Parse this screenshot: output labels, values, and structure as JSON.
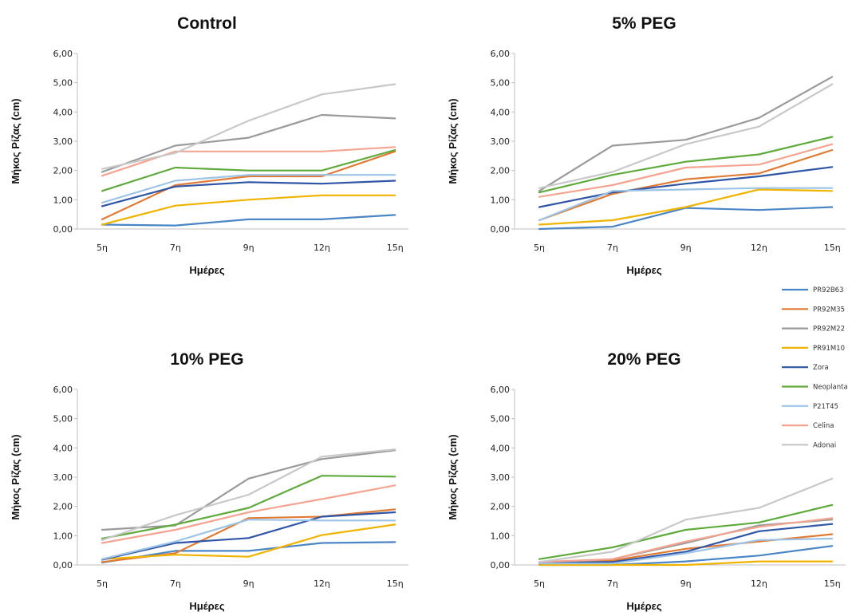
{
  "colors": {
    "PR92B63": "#4a86c5",
    "PR92M35": "#e07b36",
    "PR92M22": "#9a9a9a",
    "PR91M10": "#f0b400",
    "Zora": "#2f55a6",
    "Neoplanta": "#5faa3c",
    "P21T45": "#9dc3e6",
    "Celina": "#f4a490",
    "Adonai": "#c8c8c8"
  },
  "legend": {
    "placement": "right",
    "entries": [
      "PR92B63",
      "PR92M35",
      "PR92M22",
      "PR91M10",
      "Zora",
      "Neoplanta",
      "P21T45",
      "Celina",
      "Adonai"
    ]
  },
  "chart_data": [
    {
      "type": "line",
      "title": "Control",
      "xlabel": "Ημέρες",
      "ylabel": "Μήκος Ρίζας (cm)",
      "categories": [
        "5η",
        "7η",
        "9η",
        "12η",
        "15η"
      ],
      "ylim": [
        0,
        6
      ],
      "yticks": [
        "0,00",
        "1,00",
        "2,00",
        "3,00",
        "4,00",
        "5,00",
        "6,00"
      ],
      "grid": false,
      "series": [
        {
          "name": "PR92B63",
          "values": [
            0.15,
            0.12,
            0.33,
            0.33,
            0.48
          ]
        },
        {
          "name": "PR92M35",
          "values": [
            0.33,
            1.5,
            1.8,
            1.8,
            2.65
          ]
        },
        {
          "name": "PR92M22",
          "values": [
            1.95,
            2.85,
            3.12,
            3.9,
            3.78
          ]
        },
        {
          "name": "PR91M10",
          "values": [
            0.15,
            0.8,
            1.0,
            1.15,
            1.15
          ]
        },
        {
          "name": "Zora",
          "values": [
            0.78,
            1.45,
            1.6,
            1.55,
            1.65
          ]
        },
        {
          "name": "Neoplanta",
          "values": [
            1.3,
            2.1,
            2.0,
            2.0,
            2.7
          ]
        },
        {
          "name": "P21T45",
          "values": [
            0.9,
            1.65,
            1.85,
            1.85,
            1.85
          ]
        },
        {
          "name": "Celina",
          "values": [
            1.82,
            2.65,
            2.65,
            2.65,
            2.8
          ]
        },
        {
          "name": "Adonai",
          "values": [
            2.05,
            2.6,
            3.7,
            4.6,
            4.95
          ]
        }
      ]
    },
    {
      "type": "line",
      "title": "5% PEG",
      "xlabel": "Ημέρες",
      "ylabel": "Μήκος Ρίζας (cm)",
      "categories": [
        "5η",
        "7η",
        "9η",
        "12η",
        "15η"
      ],
      "ylim": [
        0,
        6
      ],
      "yticks": [
        "0,00",
        "1,00",
        "2,00",
        "3,00",
        "4,00",
        "5,00",
        "6,00"
      ],
      "grid": false,
      "series": [
        {
          "name": "PR92B63",
          "values": [
            0.0,
            0.08,
            0.72,
            0.65,
            0.75
          ]
        },
        {
          "name": "PR92M35",
          "values": [
            0.3,
            1.2,
            1.7,
            1.9,
            2.7
          ]
        },
        {
          "name": "PR92M22",
          "values": [
            1.3,
            2.85,
            3.05,
            3.8,
            5.2
          ]
        },
        {
          "name": "PR91M10",
          "values": [
            0.15,
            0.3,
            0.75,
            1.35,
            1.3
          ]
        },
        {
          "name": "Zora",
          "values": [
            0.75,
            1.25,
            1.55,
            1.8,
            2.12
          ]
        },
        {
          "name": "Neoplanta",
          "values": [
            1.25,
            1.85,
            2.3,
            2.55,
            3.15
          ]
        },
        {
          "name": "P21T45",
          "values": [
            0.3,
            1.3,
            1.35,
            1.4,
            1.4
          ]
        },
        {
          "name": "Celina",
          "values": [
            1.1,
            1.5,
            2.1,
            2.2,
            2.9
          ]
        },
        {
          "name": "Adonai",
          "values": [
            1.4,
            1.95,
            2.9,
            3.5,
            4.95
          ]
        }
      ]
    },
    {
      "type": "line",
      "title": "10% PEG",
      "xlabel": "Ημέρες",
      "ylabel": "Μήκος Ρίζας (cm)",
      "categories": [
        "5η",
        "7η",
        "9η",
        "12η",
        "15η"
      ],
      "ylim": [
        0,
        6
      ],
      "yticks": [
        "0,00",
        "1,00",
        "2,00",
        "3,00",
        "4,00",
        "5,00",
        "6,00"
      ],
      "grid": false,
      "series": [
        {
          "name": "PR92B63",
          "values": [
            0.08,
            0.48,
            0.48,
            0.75,
            0.78
          ]
        },
        {
          "name": "PR92M35",
          "values": [
            0.1,
            0.4,
            1.6,
            1.65,
            1.9
          ]
        },
        {
          "name": "PR92M22",
          "values": [
            1.2,
            1.35,
            2.95,
            3.62,
            3.92
          ]
        },
        {
          "name": "PR91M10",
          "values": [
            0.2,
            0.35,
            0.28,
            1.02,
            1.38
          ]
        },
        {
          "name": "Zora",
          "values": [
            0.18,
            0.75,
            0.92,
            1.65,
            1.8
          ]
        },
        {
          "name": "Neoplanta",
          "values": [
            0.9,
            1.38,
            1.95,
            3.05,
            3.02
          ]
        },
        {
          "name": "P21T45",
          "values": [
            0.2,
            0.8,
            1.55,
            1.52,
            1.52
          ]
        },
        {
          "name": "Celina",
          "values": [
            0.75,
            1.2,
            1.8,
            2.25,
            2.72
          ]
        },
        {
          "name": "Adonai",
          "values": [
            0.85,
            1.7,
            2.4,
            3.7,
            3.95
          ]
        }
      ]
    },
    {
      "type": "line",
      "title": "20% PEG",
      "xlabel": "Ημέρες",
      "ylabel": "Μήκος Ρίζας (cm)",
      "categories": [
        "5η",
        "7η",
        "9η",
        "12η",
        "15η"
      ],
      "ylim": [
        0,
        6
      ],
      "yticks": [
        "0,00",
        "1,00",
        "2,00",
        "3,00",
        "4,00",
        "5,00",
        "6,00"
      ],
      "grid": false,
      "series": [
        {
          "name": "PR92B63",
          "values": [
            0.0,
            0.0,
            0.12,
            0.32,
            0.65
          ]
        },
        {
          "name": "PR92M35",
          "values": [
            0.05,
            0.15,
            0.55,
            0.8,
            1.05
          ]
        },
        {
          "name": "PR92M22",
          "values": [
            0.05,
            0.2,
            0.75,
            1.35,
            1.55
          ]
        },
        {
          "name": "PR91M10",
          "values": [
            0.0,
            0.0,
            0.0,
            0.12,
            0.12
          ]
        },
        {
          "name": "Zora",
          "values": [
            0.05,
            0.1,
            0.45,
            1.15,
            1.4
          ]
        },
        {
          "name": "Neoplanta",
          "values": [
            0.2,
            0.6,
            1.2,
            1.45,
            2.05
          ]
        },
        {
          "name": "P21T45",
          "values": [
            0.05,
            0.05,
            0.4,
            0.85,
            0.9
          ]
        },
        {
          "name": "Celina",
          "values": [
            0.1,
            0.2,
            0.8,
            1.3,
            1.6
          ]
        },
        {
          "name": "Adonai",
          "values": [
            0.1,
            0.45,
            1.55,
            1.95,
            2.95
          ]
        }
      ]
    }
  ]
}
